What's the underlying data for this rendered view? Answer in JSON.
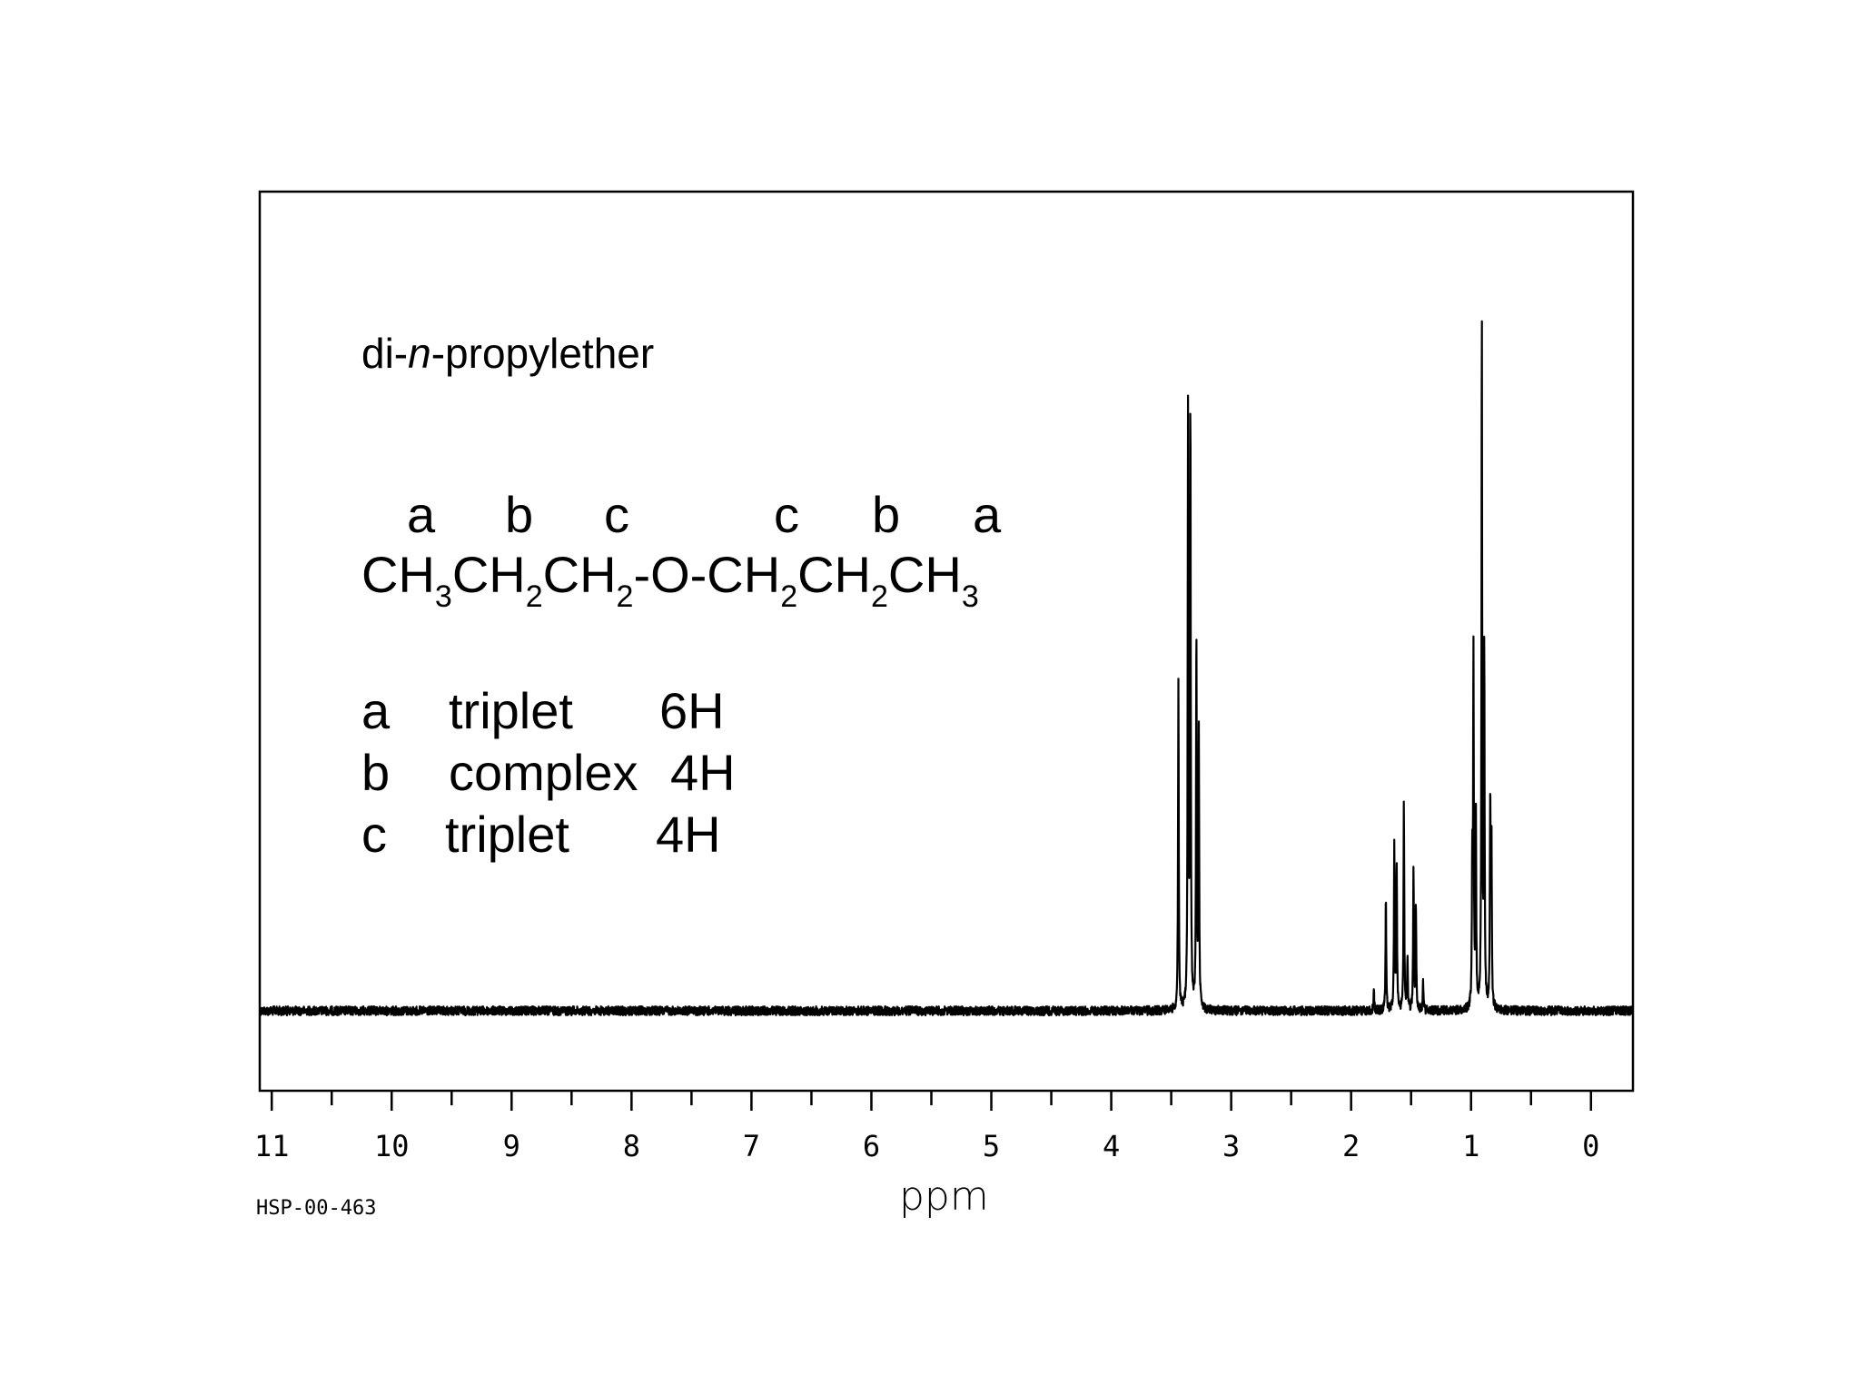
{
  "annotation": {
    "compound_prefix": "di-",
    "compound_italic": "n",
    "compound_suffix": "-propylether",
    "atom_labels": [
      "a",
      "b",
      "c",
      "c",
      "b",
      "a"
    ],
    "formula_parts": [
      "CH",
      "3",
      "CH",
      "2",
      "CH",
      "2",
      "-O-CH",
      "2",
      "CH",
      "2",
      "CH",
      "3"
    ],
    "assignments": [
      {
        "letter": "a",
        "multiplicity": "triplet",
        "integration": "6H"
      },
      {
        "letter": "b",
        "multiplicity": "complex",
        "integration": "4H"
      },
      {
        "letter": "c",
        "multiplicity": "triplet",
        "integration": "4H"
      }
    ]
  },
  "spectrum_code": "HSP-00-463",
  "chart_data": {
    "type": "line",
    "title": "",
    "xlabel": "ppm",
    "ylabel": "",
    "xlim": [
      11.1,
      -0.35
    ],
    "x_reversed": true,
    "ylim": [
      -0.12,
      1.0
    ],
    "x_ticks": [
      11,
      10,
      9,
      8,
      7,
      6,
      5,
      4,
      3,
      2,
      1,
      0
    ],
    "grid": false,
    "baseline": 0,
    "series": [
      {
        "peaks": [
          {
            "ppm": 3.44,
            "height": 0.44
          },
          {
            "ppm": 3.36,
            "height": 0.8
          },
          {
            "ppm": 3.34,
            "height": 0.81
          },
          {
            "ppm": 3.29,
            "height": 0.5
          },
          {
            "ppm": 3.27,
            "height": 0.37
          },
          {
            "ppm": 1.81,
            "height": 0.03
          },
          {
            "ppm": 1.71,
            "height": 0.15
          },
          {
            "ppm": 1.64,
            "height": 0.22
          },
          {
            "ppm": 1.62,
            "height": 0.2
          },
          {
            "ppm": 1.56,
            "height": 0.28
          },
          {
            "ppm": 1.53,
            "height": 0.07
          },
          {
            "ppm": 1.48,
            "height": 0.19
          },
          {
            "ppm": 1.46,
            "height": 0.14
          },
          {
            "ppm": 1.4,
            "height": 0.04
          },
          {
            "ppm": 0.99,
            "height": 0.18
          },
          {
            "ppm": 0.98,
            "height": 0.47
          },
          {
            "ppm": 0.96,
            "height": 0.27
          },
          {
            "ppm": 0.91,
            "height": 0.92
          },
          {
            "ppm": 0.89,
            "height": 0.48
          },
          {
            "ppm": 0.84,
            "height": 0.28
          },
          {
            "ppm": 0.83,
            "height": 0.23
          }
        ]
      }
    ]
  }
}
